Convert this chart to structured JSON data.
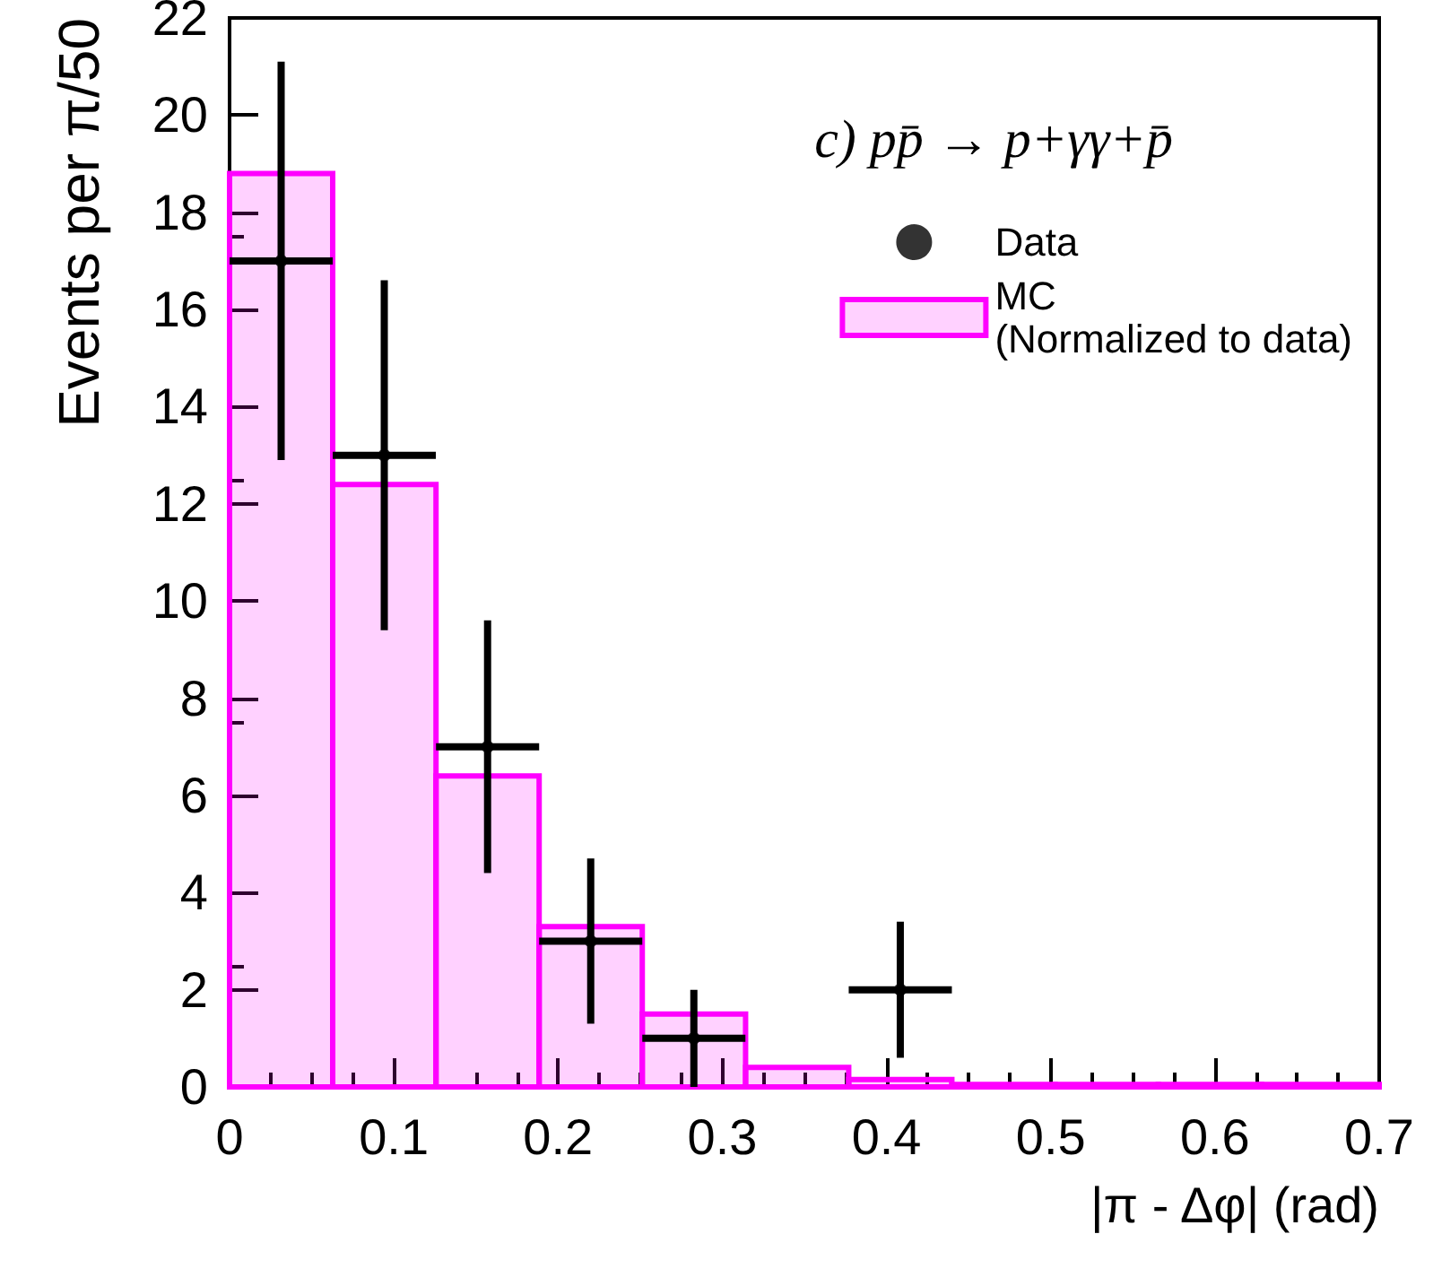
{
  "chart_data": {
    "type": "histogram",
    "title": "c) pp̄ → p+γγ+p̄",
    "xlabel": "|π - Δφ| (rad)",
    "ylabel": "Events per π/50",
    "bins": [
      0,
      0.0628,
      0.1257,
      0.1885,
      0.2513,
      0.3142,
      0.377,
      0.4398,
      0.5027,
      0.5655,
      0.6283,
      0.7
    ],
    "series": [
      {
        "type": "scatter",
        "name": "Data",
        "color": "#000000",
        "x": [
          0.0314,
          0.0942,
          0.1571,
          0.2199,
          0.2827,
          0.4084
        ],
        "values": [
          17,
          13,
          7,
          3,
          1,
          2
        ],
        "errors": [
          [
            12.9,
            21.1
          ],
          [
            9.4,
            16.6
          ],
          [
            4.4,
            9.6
          ],
          [
            1.3,
            4.7
          ],
          [
            0,
            2
          ],
          [
            0.6,
            3.4
          ]
        ],
        "xerrors": [
          0.0314,
          0.0314,
          0.0314,
          0.0314,
          0.0314,
          0.0314
        ]
      },
      {
        "name": "MC\n(Normalized to data)",
        "color": "#ff00ff",
        "values": [
          18.8,
          12.4,
          6.4,
          3.3,
          1.5,
          0.4,
          0.15,
          0.05,
          0.05,
          0.05,
          0.05
        ]
      }
    ],
    "xlim": [
      0,
      0.7
    ],
    "xticks": [
      0,
      0.1,
      0.2,
      0.3,
      0.4,
      0.5,
      0.6,
      0.7
    ],
    "ylim": [
      0,
      22
    ],
    "yticks": [
      0,
      2,
      4,
      6,
      8,
      10,
      12,
      14,
      16,
      18,
      20,
      22
    ],
    "grid": false,
    "legend": "top right",
    "marker": "circle"
  }
}
